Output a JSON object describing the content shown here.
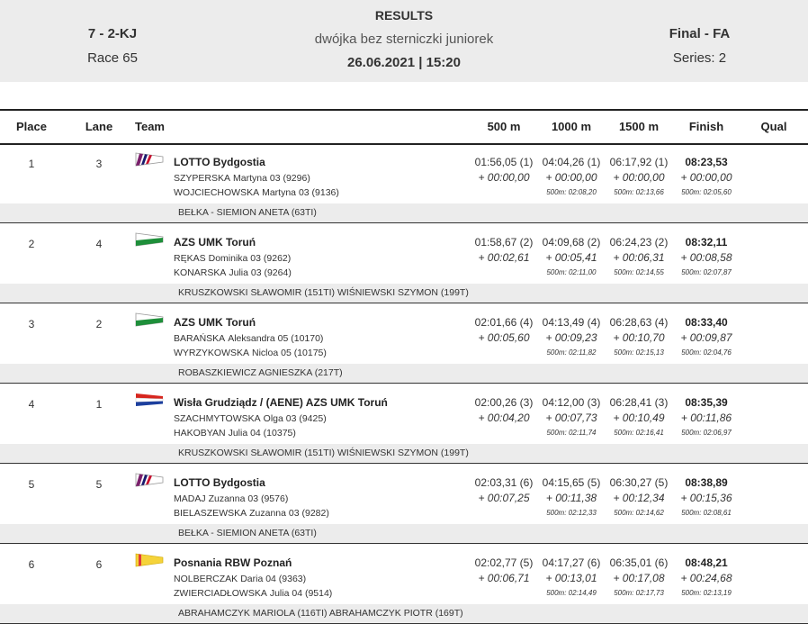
{
  "header": {
    "event_code": "7 - 2-KJ",
    "race": "Race 65",
    "title": "RESULTS",
    "description": "dwójka bez sterniczki juniorek",
    "datetime": "26.06.2021 | 15:20",
    "final": "Final - FA",
    "series": "Series: 2"
  },
  "columns": {
    "place": "Place",
    "lane": "Lane",
    "team": "Team",
    "m500": "500 m",
    "m1000": "1000 m",
    "m1500": "1500 m",
    "finish": "Finish",
    "qual": "Qual"
  },
  "rows": [
    {
      "place": "1",
      "lane": "3",
      "flag": "lotto-flag-icon",
      "team": "LOTTO Bydgostia",
      "crew": [
        {
          "surname": "SZYPERSKA",
          "name": "Martyna 03 (9296)"
        },
        {
          "surname": "WOJCIECHOWSKA",
          "name": "Martyna 03 (9136)"
        }
      ],
      "coach": "BEŁKA - SIEMION ANETA (63TI)",
      "s500": {
        "time": "01:56,05 (1)",
        "diff": "+ 00:00,00",
        "pace": ""
      },
      "s1000": {
        "time": "04:04,26 (1)",
        "diff": "+ 00:00,00",
        "pace": "500m: 02:08,20"
      },
      "s1500": {
        "time": "06:17,92 (1)",
        "diff": "+ 00:00,00",
        "pace": "500m: 02:13,66"
      },
      "finish": {
        "time": "08:23,53",
        "diff": "+ 00:00,00",
        "pace": "500m: 02:05,60"
      }
    },
    {
      "place": "2",
      "lane": "4",
      "flag": "azs-flag-icon",
      "team": "AZS UMK Toruń",
      "crew": [
        {
          "surname": "RĘKAS",
          "name": "Dominika 03 (9262)"
        },
        {
          "surname": "KONARSKA",
          "name": "Julia 03 (9264)"
        }
      ],
      "coach": "KRUSZKOWSKI SŁAWOMIR (151TI) WIŚNIEWSKI SZYMON (199T)",
      "s500": {
        "time": "01:58,67 (2)",
        "diff": "+ 00:02,61",
        "pace": ""
      },
      "s1000": {
        "time": "04:09,68 (2)",
        "diff": "+ 00:05,41",
        "pace": "500m: 02:11,00"
      },
      "s1500": {
        "time": "06:24,23 (2)",
        "diff": "+ 00:06,31",
        "pace": "500m: 02:14,55"
      },
      "finish": {
        "time": "08:32,11",
        "diff": "+ 00:08,58",
        "pace": "500m: 02:07,87"
      }
    },
    {
      "place": "3",
      "lane": "2",
      "flag": "azs-flag-icon",
      "team": "AZS UMK Toruń",
      "crew": [
        {
          "surname": "BARAŃSKA",
          "name": "Aleksandra 05 (10170)"
        },
        {
          "surname": "WYRZYKOWSKA",
          "name": "Nicloa 05 (10175)"
        }
      ],
      "coach": "ROBASZKIEWICZ AGNIESZKA (217T)",
      "s500": {
        "time": "02:01,66 (4)",
        "diff": "+ 00:05,60",
        "pace": ""
      },
      "s1000": {
        "time": "04:13,49 (4)",
        "diff": "+ 00:09,23",
        "pace": "500m: 02:11,82"
      },
      "s1500": {
        "time": "06:28,63 (4)",
        "diff": "+ 00:10,70",
        "pace": "500m: 02:15,13"
      },
      "finish": {
        "time": "08:33,40",
        "diff": "+ 00:09,87",
        "pace": "500m: 02:04,76"
      }
    },
    {
      "place": "4",
      "lane": "1",
      "flag": "wisla-flag-icon",
      "team": "Wisła Grudziądz / (AENE) AZS UMK Toruń",
      "crew": [
        {
          "surname": "SZACHMYTOWSKA",
          "name": "Olga 03 (9425)"
        },
        {
          "surname": "HAKOBYAN",
          "name": "Julia 04 (10375)"
        }
      ],
      "coach": "KRUSZKOWSKI SŁAWOMIR (151TI) WIŚNIEWSKI SZYMON (199T)",
      "s500": {
        "time": "02:00,26 (3)",
        "diff": "+ 00:04,20",
        "pace": ""
      },
      "s1000": {
        "time": "04:12,00 (3)",
        "diff": "+ 00:07,73",
        "pace": "500m: 02:11,74"
      },
      "s1500": {
        "time": "06:28,41 (3)",
        "diff": "+ 00:10,49",
        "pace": "500m: 02:16,41"
      },
      "finish": {
        "time": "08:35,39",
        "diff": "+ 00:11,86",
        "pace": "500m: 02:06,97"
      }
    },
    {
      "place": "5",
      "lane": "5",
      "flag": "lotto-flag-icon",
      "team": "LOTTO Bydgostia",
      "crew": [
        {
          "surname": "MADAJ",
          "name": "Zuzanna 03 (9576)"
        },
        {
          "surname": "BIELASZEWSKA",
          "name": "Zuzanna 03 (9282)"
        }
      ],
      "coach": "BEŁKA - SIEMION ANETA (63TI)",
      "s500": {
        "time": "02:03,31 (6)",
        "diff": "+ 00:07,25",
        "pace": ""
      },
      "s1000": {
        "time": "04:15,65 (5)",
        "diff": "+ 00:11,38",
        "pace": "500m: 02:12,33"
      },
      "s1500": {
        "time": "06:30,27 (5)",
        "diff": "+ 00:12,34",
        "pace": "500m: 02:14,62"
      },
      "finish": {
        "time": "08:38,89",
        "diff": "+ 00:15,36",
        "pace": "500m: 02:08,61"
      }
    },
    {
      "place": "6",
      "lane": "6",
      "flag": "posnania-flag-icon",
      "team": "Posnania RBW Poznań",
      "crew": [
        {
          "surname": "NOLBERCZAK",
          "name": "Daria 04 (9363)"
        },
        {
          "surname": "ZWIERCIADŁOWSKA",
          "name": "Julia 04 (9514)"
        }
      ],
      "coach": "ABRAHAMCZYK MARIOLA (116TI) ABRAHAMCZYK PIOTR (169T)",
      "s500": {
        "time": "02:02,77 (5)",
        "diff": "+ 00:06,71",
        "pace": ""
      },
      "s1000": {
        "time": "04:17,27 (6)",
        "diff": "+ 00:13,01",
        "pace": "500m: 02:14,49"
      },
      "s1500": {
        "time": "06:35,01 (6)",
        "diff": "+ 00:17,08",
        "pace": "500m: 02:17,73"
      },
      "finish": {
        "time": "08:48,21",
        "diff": "+ 00:24,68",
        "pace": "500m: 02:13,19"
      }
    }
  ]
}
